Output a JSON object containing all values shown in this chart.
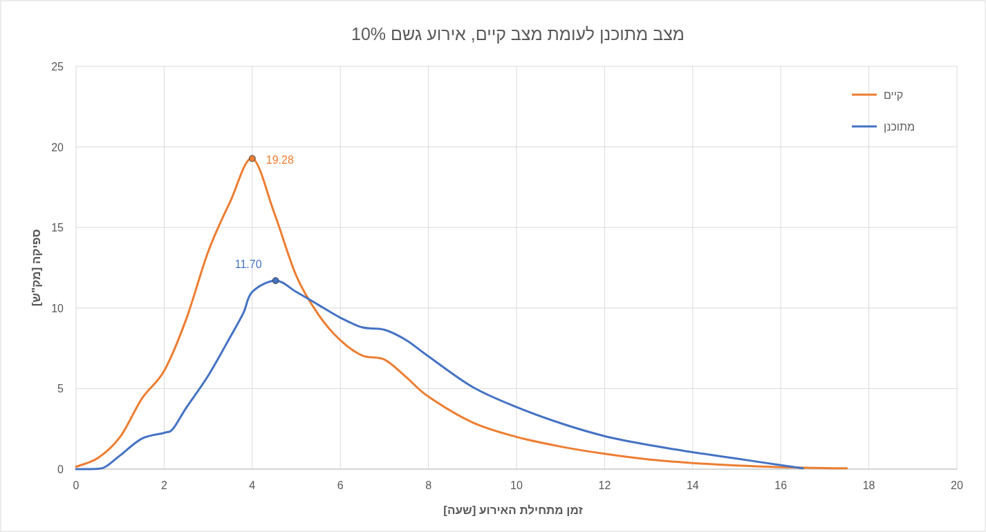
{
  "chart_data": {
    "type": "line",
    "title": "מצב מתוכנן לעומת מצב קיים, אירוע גשם 10%",
    "xlabel": "זמן מתחילת האירוע [שעה]",
    "ylabel": "ספיקה [מק\"ש]",
    "xlim": [
      0,
      20
    ],
    "ylim": [
      0,
      25
    ],
    "xticks": [
      0,
      2,
      4,
      6,
      8,
      10,
      12,
      14,
      16,
      18,
      20
    ],
    "yticks": [
      0,
      5,
      10,
      15,
      20,
      25
    ],
    "grid": true,
    "legend": "top right",
    "series": [
      {
        "name": "קיים",
        "color": "#ed7d31",
        "x": [
          0,
          0.5,
          1,
          1.5,
          2,
          2.5,
          3,
          3.5,
          4,
          4.5,
          5,
          5.5,
          6,
          6.5,
          7,
          7.5,
          8,
          9,
          10,
          11,
          12,
          13,
          14,
          15,
          16,
          17,
          17.5
        ],
        "values": [
          0.15,
          0.7,
          2.0,
          4.4,
          6.1,
          9.3,
          13.5,
          16.6,
          19.28,
          15.9,
          12.0,
          9.6,
          8.0,
          7.05,
          6.8,
          5.7,
          4.5,
          2.9,
          2.0,
          1.4,
          0.95,
          0.6,
          0.38,
          0.22,
          0.12,
          0.06,
          0.05
        ],
        "value_labels": [
          null,
          null,
          null,
          null,
          null,
          null,
          null,
          null,
          "19.28",
          null,
          null,
          null,
          null,
          null,
          null,
          null,
          null,
          null,
          null,
          null,
          null,
          null,
          null,
          null,
          null,
          null,
          null
        ]
      },
      {
        "name": "מתוכנן",
        "color": "#4472c4",
        "x": [
          0,
          0.5,
          0.7,
          1,
          1.5,
          2,
          2.2,
          2.5,
          3,
          3.5,
          3.8,
          4,
          4.53,
          5,
          5.5,
          6,
          6.5,
          7,
          7.5,
          8,
          9,
          10,
          11,
          12,
          13,
          14,
          15,
          16,
          16.5
        ],
        "values": [
          0,
          0.02,
          0.2,
          0.85,
          1.9,
          2.25,
          2.5,
          3.8,
          5.8,
          8.2,
          9.7,
          11.0,
          11.7,
          11.0,
          10.2,
          9.4,
          8.8,
          8.65,
          8.0,
          7.0,
          5.1,
          3.85,
          2.85,
          2.05,
          1.5,
          1.05,
          0.65,
          0.25,
          0.05
        ],
        "value_labels": [
          null,
          null,
          null,
          null,
          null,
          null,
          null,
          null,
          null,
          null,
          null,
          null,
          "11.70",
          null,
          null,
          null,
          null,
          null,
          null,
          null,
          null,
          null,
          null,
          null,
          null,
          null,
          null,
          null,
          null
        ]
      }
    ]
  }
}
